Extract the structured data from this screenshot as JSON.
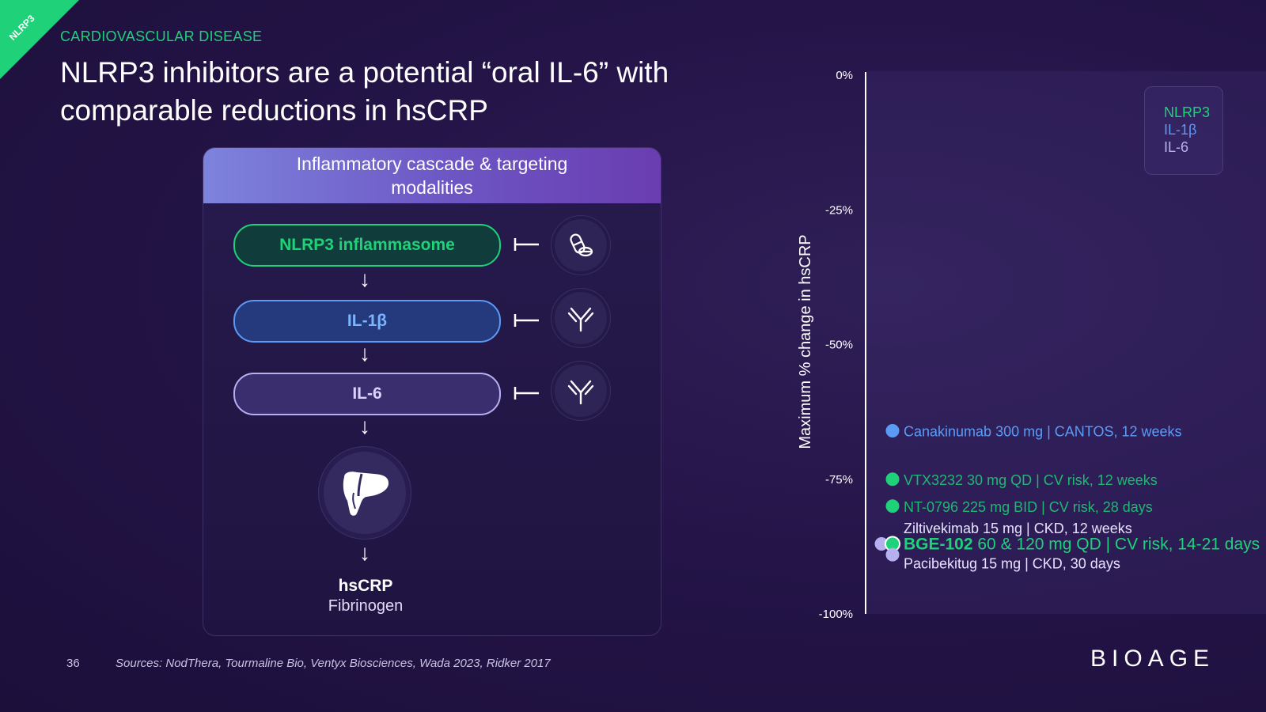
{
  "corner_badge": "NLRP3",
  "eyebrow": "CARDIOVASCULAR DISEASE",
  "title": "NLRP3 inhibitors are a potential “oral IL-6” with comparable reductions in hsCRP",
  "cascade": {
    "header": "Inflammatory cascade & targeting modalities",
    "steps": [
      {
        "label": "NLRP3 inflammasome",
        "modality_icon": "pill-icon"
      },
      {
        "label": "IL-1β",
        "modality_icon": "antibody-icon"
      },
      {
        "label": "IL-6",
        "modality_icon": "antibody-icon"
      }
    ],
    "organ_icon": "liver-icon",
    "outcome_primary": "hsCRP",
    "outcome_secondary": "Fibrinogen"
  },
  "footer": {
    "page_number": "36",
    "sources": "Sources: NodThera, Tourmaline Bio, Ventyx Biosciences, Wada 2023, Ridker 2017",
    "logo": "BIOAGE"
  },
  "colors": {
    "nlrp3": "#1fd178",
    "il1b": "#5b9bf6",
    "il6": "#b7b0f0",
    "accent": "#1fd178"
  },
  "chart_data": {
    "type": "scatter",
    "ylabel": "Maximum % change in hsCRP",
    "ylim": [
      -100,
      0
    ],
    "yticks": [
      {
        "value": 0,
        "label": "0%"
      },
      {
        "value": -25,
        "label": "-25%"
      },
      {
        "value": -50,
        "label": "-50%"
      },
      {
        "value": -75,
        "label": "-75%"
      },
      {
        "value": -100,
        "label": "-100%"
      }
    ],
    "legend": {
      "placement": "top-right",
      "entries": [
        {
          "label": "NLRP3",
          "color": "#1fd178"
        },
        {
          "label": "IL-1β",
          "color": "#5b9bf6"
        },
        {
          "label": "IL-6",
          "color": "#b7b0f0"
        }
      ]
    },
    "points": [
      {
        "name": "Canakinumab 300 mg | CANTOS, 12 weeks",
        "class": "IL-1β",
        "y": -66,
        "label_y": -66,
        "color": "#5b9bf6",
        "offset": 0,
        "bold_prefix": ""
      },
      {
        "name": "VTX3232 30 mg QD | CV risk, 12 weeks",
        "class": "NLRP3",
        "y": -75,
        "label_y": -75,
        "color": "#1fd178",
        "offset": 0,
        "bold_prefix": ""
      },
      {
        "name": "NT-0796 225 mg BID | CV risk, 28 days",
        "class": "NLRP3",
        "y": -80,
        "label_y": -80,
        "color": "#1fd178",
        "offset": 0,
        "bold_prefix": ""
      },
      {
        "name": "Ziltivekimab 15 mg | CKD, 12 weeks",
        "class": "IL-6",
        "y": -87,
        "label_y": -84,
        "color": "#b7b0f0",
        "offset": -1,
        "bold_prefix": ""
      },
      {
        "name": " 60 & 120 mg QD | CV risk, 14-21 days",
        "class": "NLRP3",
        "y": -87,
        "label_y": -87,
        "color": "#1fd178",
        "offset": 0,
        "bold_prefix": "BGE-102"
      },
      {
        "name": "Pacibekitug 15 mg | CKD, 30 days",
        "class": "IL-6",
        "y": -89,
        "label_y": -90.5,
        "color": "#b7b0f0",
        "offset": 0,
        "bold_prefix": ""
      }
    ]
  }
}
